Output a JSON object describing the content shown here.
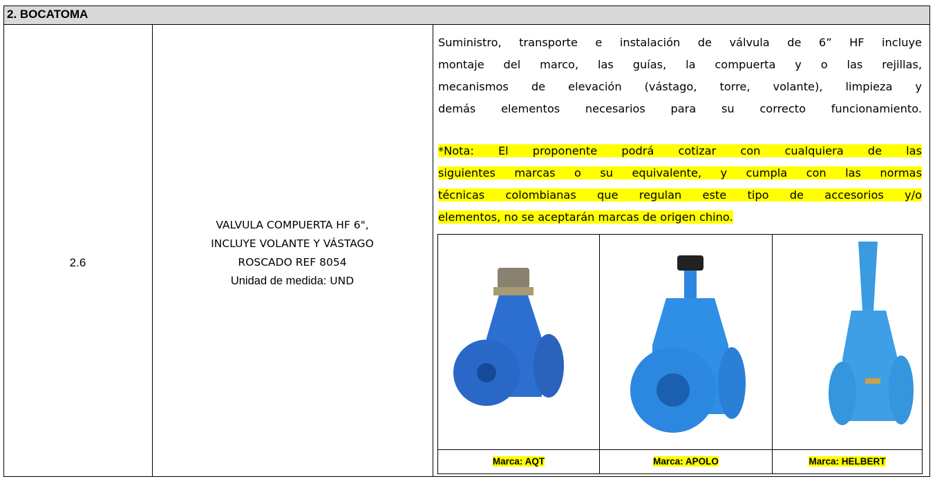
{
  "header": {
    "title": "2. BOCATOMA"
  },
  "item": {
    "number": "2.6",
    "name_lines": [
      "VALVULA COMPUERTA HF 6\",",
      "INCLUYE VOLANTE Y VÁSTAGO",
      "ROSCADO REF 8054"
    ],
    "unit_label": "Unidad de medida:",
    "unit_value": "UND"
  },
  "description": {
    "lines": [
      "Suministro, transporte e instalación de válvula de 6” HF incluye",
      "montaje del marco, las guías, la compuerta y o las rejillas,",
      "mecanismos de elevación (vástago, torre, volante), limpieza y",
      "demás elementos necesarios para su correcto funcionamiento."
    ],
    "note_lines": [
      "*Nota: El proponente podrá cotizar con cualquiera de las",
      "siguientes marcas o su equivalente, y cumpla con las normas",
      "técnicas colombianas que regulan este tipo de accesorios y/o",
      "elementos, no se aceptarán marcas  de origen chino."
    ]
  },
  "brands": [
    "Marca: AQT",
    "Marca: APOLO",
    "Marca: HELBERT"
  ]
}
